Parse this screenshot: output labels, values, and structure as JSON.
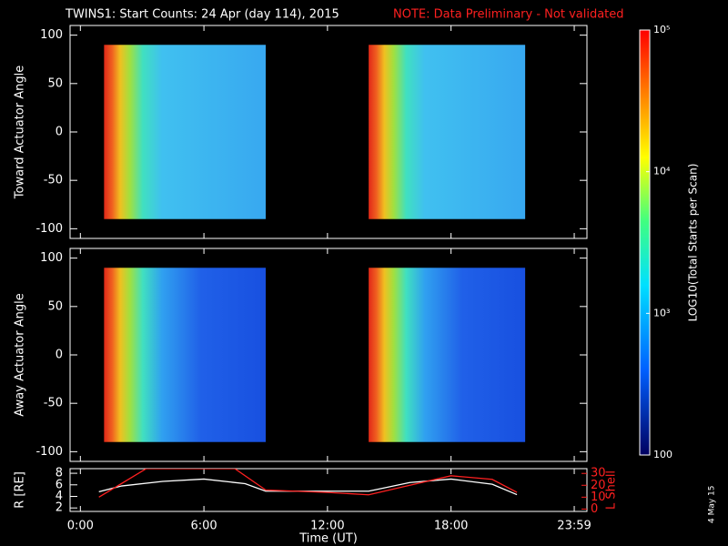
{
  "header": {
    "title": "TWINS1: Start Counts: 24 Apr (day 114), 2015",
    "note": "NOTE: Data Preliminary - Not validated"
  },
  "date_stamp": "4 May 15",
  "chart_data": [
    {
      "type": "heatmap",
      "ylabel": "Toward Actuator Angle",
      "xlim": [
        -0.5,
        24.6
      ],
      "ylim": [
        -110,
        110
      ],
      "yticks": [
        -100,
        -50,
        0,
        50,
        100
      ],
      "coverage_x": [
        [
          1.15,
          9.0
        ],
        [
          14.0,
          21.6
        ]
      ],
      "coverage_y": [
        -90,
        90
      ],
      "palette": "light"
    },
    {
      "type": "heatmap",
      "ylabel": "Away Actuator Angle",
      "xlim": [
        -0.5,
        24.6
      ],
      "ylim": [
        -110,
        110
      ],
      "yticks": [
        -100,
        -50,
        0,
        50,
        100
      ],
      "coverage_x": [
        [
          1.15,
          9.0
        ],
        [
          14.0,
          21.6
        ]
      ],
      "coverage_y": [
        -90,
        90
      ],
      "palette": "dark"
    },
    {
      "type": "line",
      "ylabel": "R [RE]",
      "y2label": "L Shell",
      "xlabel": "Time (UT)",
      "xlim": [
        -0.5,
        24.6
      ],
      "xticks": [
        {
          "value": 0,
          "label": "0:00"
        },
        {
          "value": 6,
          "label": "6:00"
        },
        {
          "value": 12,
          "label": "12:00"
        },
        {
          "value": 18,
          "label": "18:00"
        },
        {
          "value": 23.983,
          "label": "23:59"
        }
      ],
      "ylim": [
        1.4,
        8.8
      ],
      "yticks": [
        2,
        4,
        6,
        8
      ],
      "y2lim": [
        -2,
        34
      ],
      "y2ticks": [
        0,
        10,
        20,
        30
      ],
      "series": [
        {
          "color": "#ffffff",
          "x": [
            0.9,
            2,
            4,
            6,
            8,
            9,
            12,
            14,
            16,
            18,
            20,
            21.2
          ],
          "values": [
            4.8,
            5.8,
            6.6,
            7.0,
            6.2,
            4.9,
            4.9,
            4.9,
            6.4,
            7.0,
            6.1,
            4.3
          ]
        },
        {
          "color": "#ff2020",
          "axis": "y2",
          "x": [
            0.9,
            3.2,
            7.5,
            9,
            12,
            14,
            16,
            18,
            20,
            21.2
          ],
          "values": [
            10,
            34,
            34,
            16,
            14,
            12,
            20,
            28,
            25,
            14
          ]
        }
      ]
    },
    {
      "type": "colorbar",
      "label": "LOG10(Total Starts per Scan)",
      "log": true,
      "clim": [
        100,
        100000
      ],
      "ticks": [
        100,
        {
          "value": 1000,
          "label": "10³"
        },
        {
          "value": 10000,
          "label": "10⁴"
        },
        {
          "value": 100000,
          "label": "10⁵"
        }
      ]
    }
  ]
}
